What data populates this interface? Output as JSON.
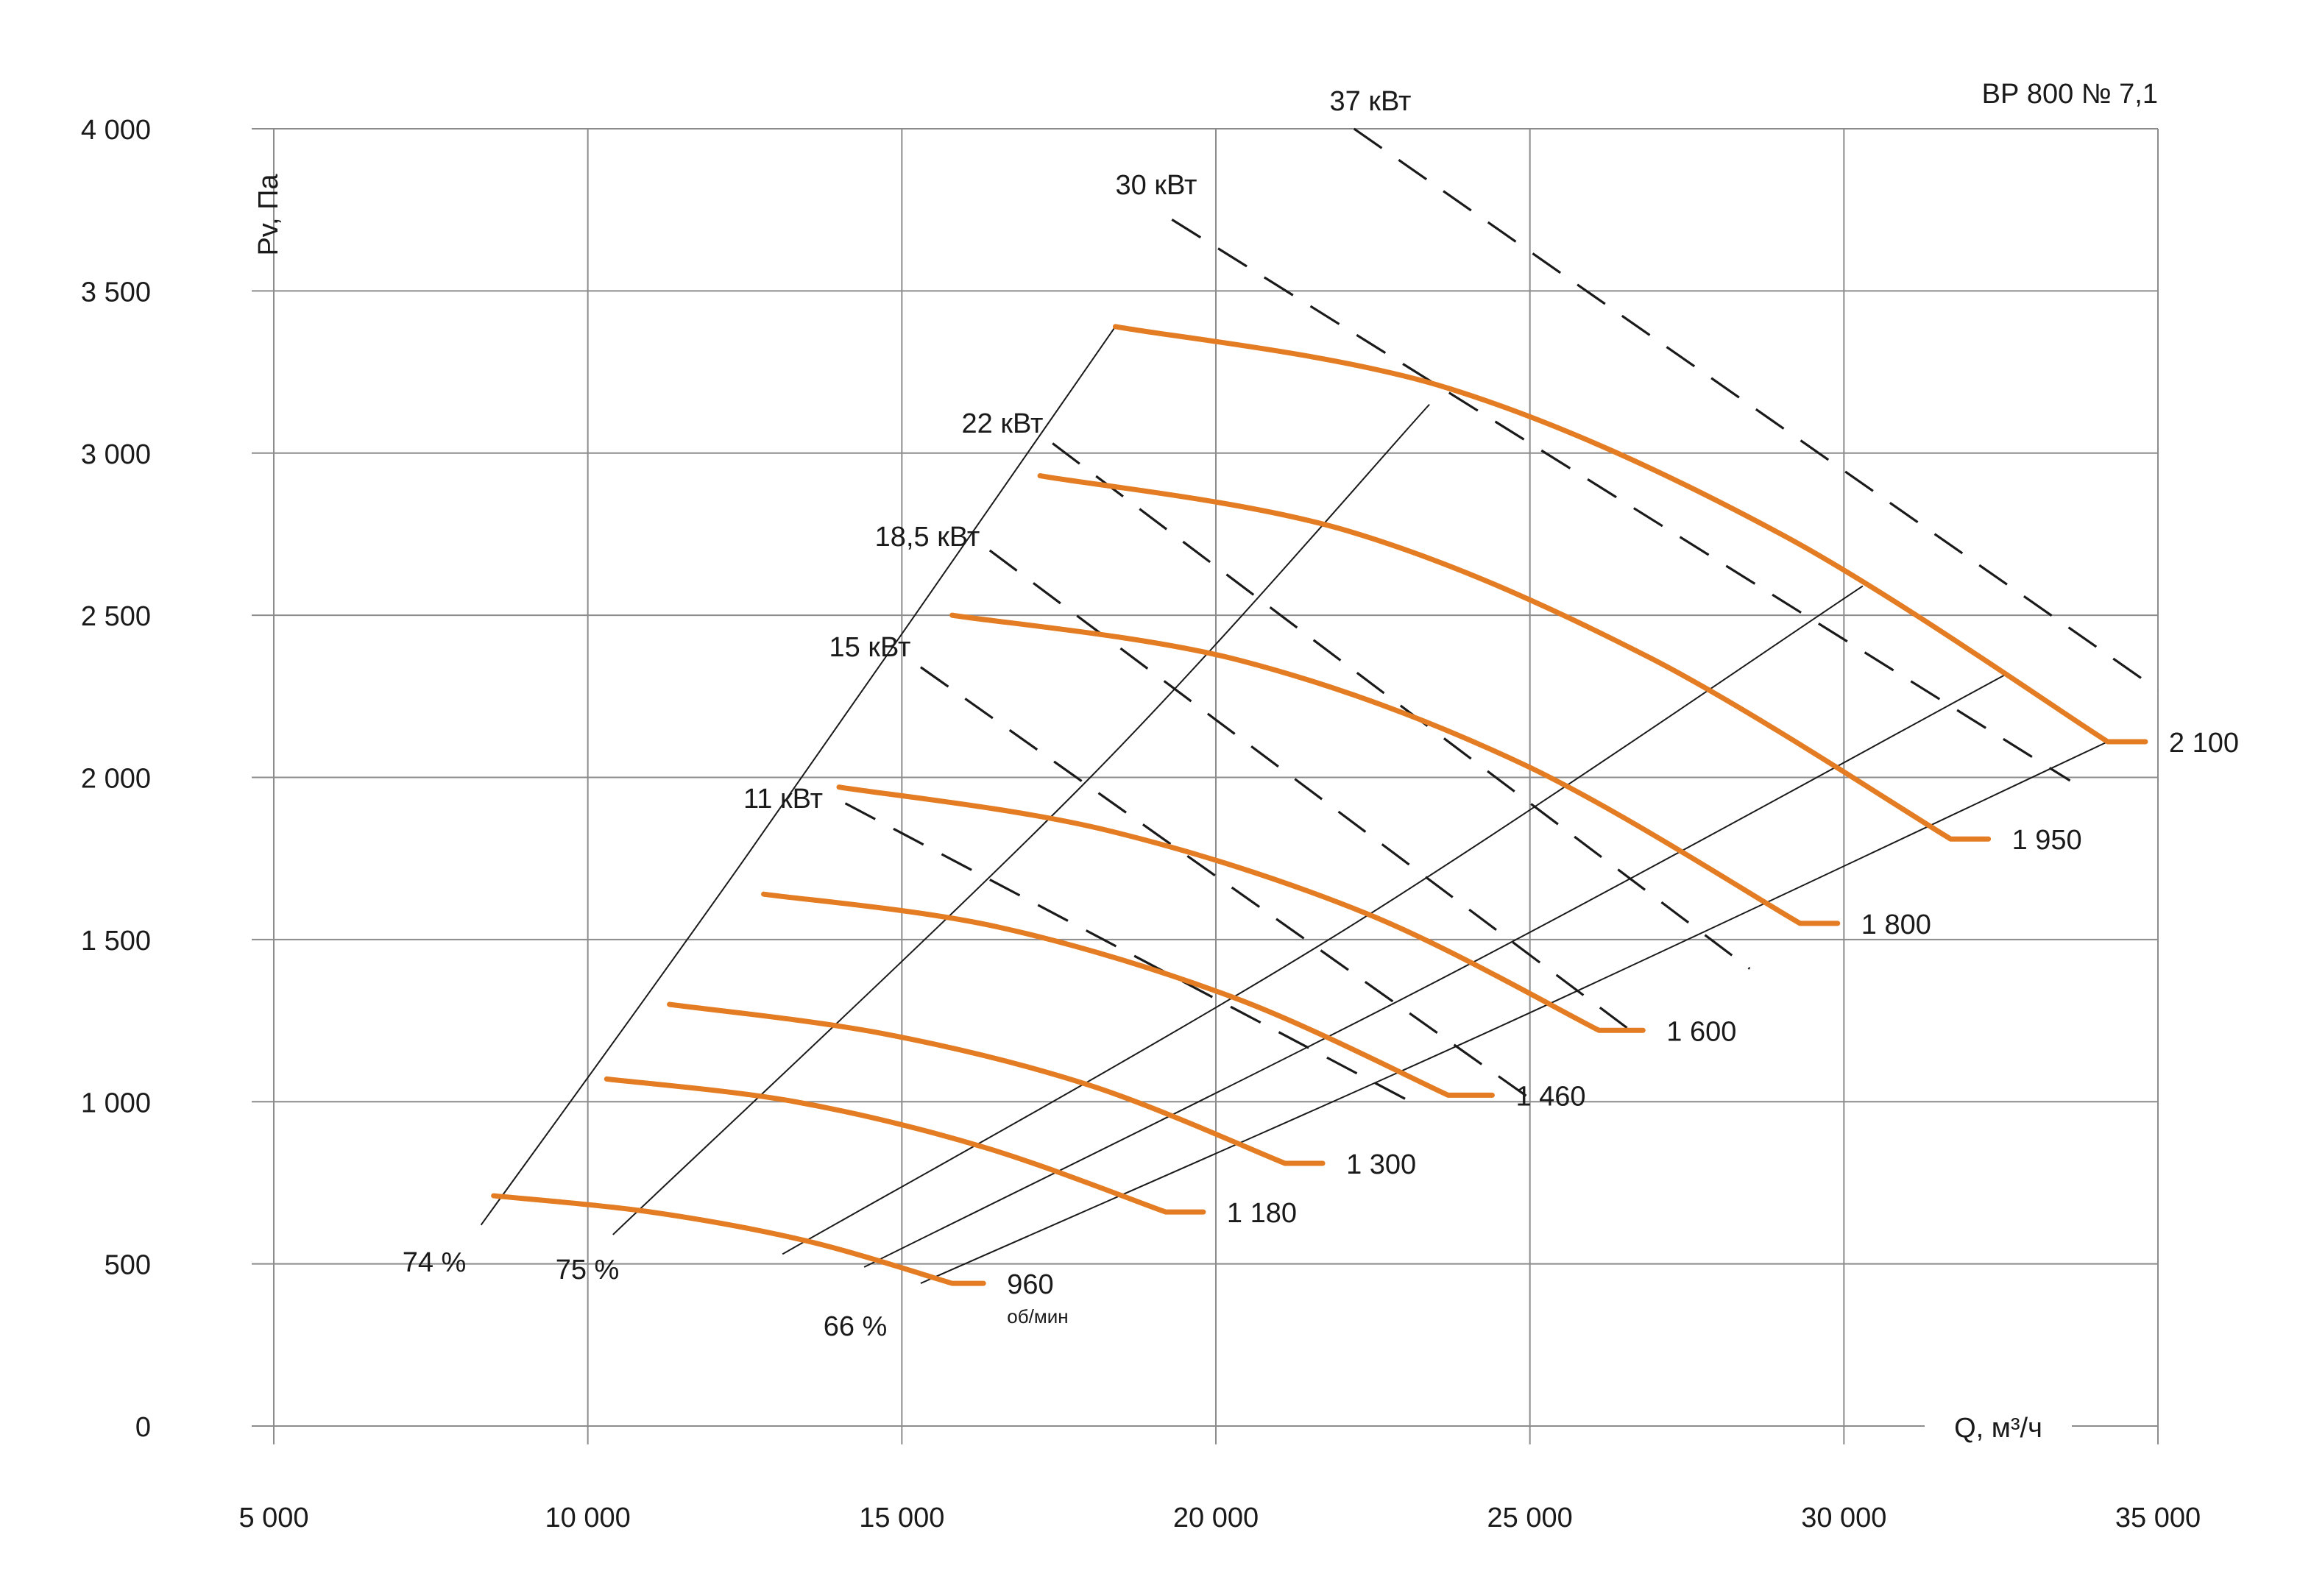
{
  "chart_data": {
    "type": "line",
    "title": "ВР 800  № 7,1",
    "xlabel": "Q, м³/ч",
    "ylabel": "Pv, Па",
    "xlim": [
      5000,
      35000
    ],
    "ylim": [
      0,
      4000
    ],
    "grid": true,
    "x_ticks": [
      5000,
      10000,
      15000,
      20000,
      25000,
      30000,
      35000
    ],
    "x_tick_labels": [
      "5 000",
      "10 000",
      "15 000",
      "20 000",
      "25 000",
      "30 000",
      "35 000"
    ],
    "y_ticks": [
      0,
      500,
      1000,
      1500,
      2000,
      2500,
      3000,
      3500,
      4000
    ],
    "y_tick_labels": [
      "0",
      "500",
      "1 000",
      "1 500",
      "2 000",
      "2 500",
      "3 000",
      "3 500",
      "4 000"
    ],
    "rpm_unit": "об/мин",
    "series": [
      {
        "name": "960",
        "group": "rpm",
        "x": [
          8500,
          11000,
          13500,
          15800
        ],
        "y": [
          710,
          660,
          570,
          440
        ],
        "end_x": 16300
      },
      {
        "name": "1 180",
        "group": "rpm",
        "x": [
          10300,
          13300,
          16300,
          19200
        ],
        "y": [
          1070,
          1000,
          860,
          660
        ],
        "end_x": 19800
      },
      {
        "name": "1 300",
        "group": "rpm",
        "x": [
          11300,
          14700,
          18000,
          21100
        ],
        "y": [
          1300,
          1210,
          1050,
          810
        ],
        "end_x": 21700
      },
      {
        "name": "1 460",
        "group": "rpm",
        "x": [
          12800,
          16500,
          20300,
          23700
        ],
        "y": [
          1640,
          1540,
          1320,
          1020
        ],
        "end_x": 24400
      },
      {
        "name": "1 600",
        "group": "rpm",
        "x": [
          14000,
          18200,
          22400,
          26100
        ],
        "y": [
          1970,
          1840,
          1580,
          1220
        ],
        "end_x": 26800
      },
      {
        "name": "1 800",
        "group": "rpm",
        "x": [
          15800,
          20400,
          24900,
          29300
        ],
        "y": [
          2500,
          2360,
          2040,
          1550
        ],
        "end_x": 29900
      },
      {
        "name": "1 950",
        "group": "rpm",
        "x": [
          17200,
          22100,
          26900,
          31700
        ],
        "y": [
          2930,
          2760,
          2370,
          1810
        ],
        "end_x": 32300
      },
      {
        "name": "2 100",
        "group": "rpm",
        "x": [
          18400,
          23700,
          29000,
          34200
        ],
        "y": [
          3390,
          3200,
          2750,
          2110
        ],
        "end_x": 34800
      },
      {
        "name": "74 %",
        "group": "efficiency",
        "x": [
          8300,
          12500,
          18400
        ],
        "y": [
          620,
          1750,
          3390
        ]
      },
      {
        "name": "75 %",
        "group": "efficiency",
        "x": [
          10400,
          18000,
          23400
        ],
        "y": [
          590,
          2000,
          3150
        ]
      },
      {
        "name": "66 %",
        "group": "efficiency",
        "x": [
          15300,
          24500,
          34200
        ],
        "y": [
          440,
          1230,
          2110
        ]
      },
      {
        "name": "",
        "group": "efficiency",
        "x": [
          13100,
          21800,
          30300
        ],
        "y": [
          530,
          1500,
          2590
        ]
      },
      {
        "name": "",
        "group": "efficiency",
        "x": [
          14400,
          23600,
          32600
        ],
        "y": [
          490,
          1380,
          2320
        ]
      },
      {
        "name": "37 кВт",
        "group": "power",
        "x": [
          22200,
          35000
        ],
        "y": [
          4000,
          2270
        ]
      },
      {
        "name": "30 кВт",
        "group": "power",
        "x": [
          19300,
          33600
        ],
        "y": [
          3720,
          1990
        ]
      },
      {
        "name": "22 кВт",
        "group": "power",
        "x": [
          17400,
          28500
        ],
        "y": [
          3030,
          1410
        ]
      },
      {
        "name": "18,5 кВт",
        "group": "power",
        "x": [
          16400,
          26600
        ],
        "y": [
          2700,
          1220
        ]
      },
      {
        "name": "15 кВт",
        "group": "power",
        "x": [
          15300,
          25000
        ],
        "y": [
          2340,
          1010
        ]
      },
      {
        "name": "11 кВт",
        "group": "power",
        "x": [
          14100,
          23100
        ],
        "y": [
          1920,
          1000
        ]
      }
    ]
  }
}
